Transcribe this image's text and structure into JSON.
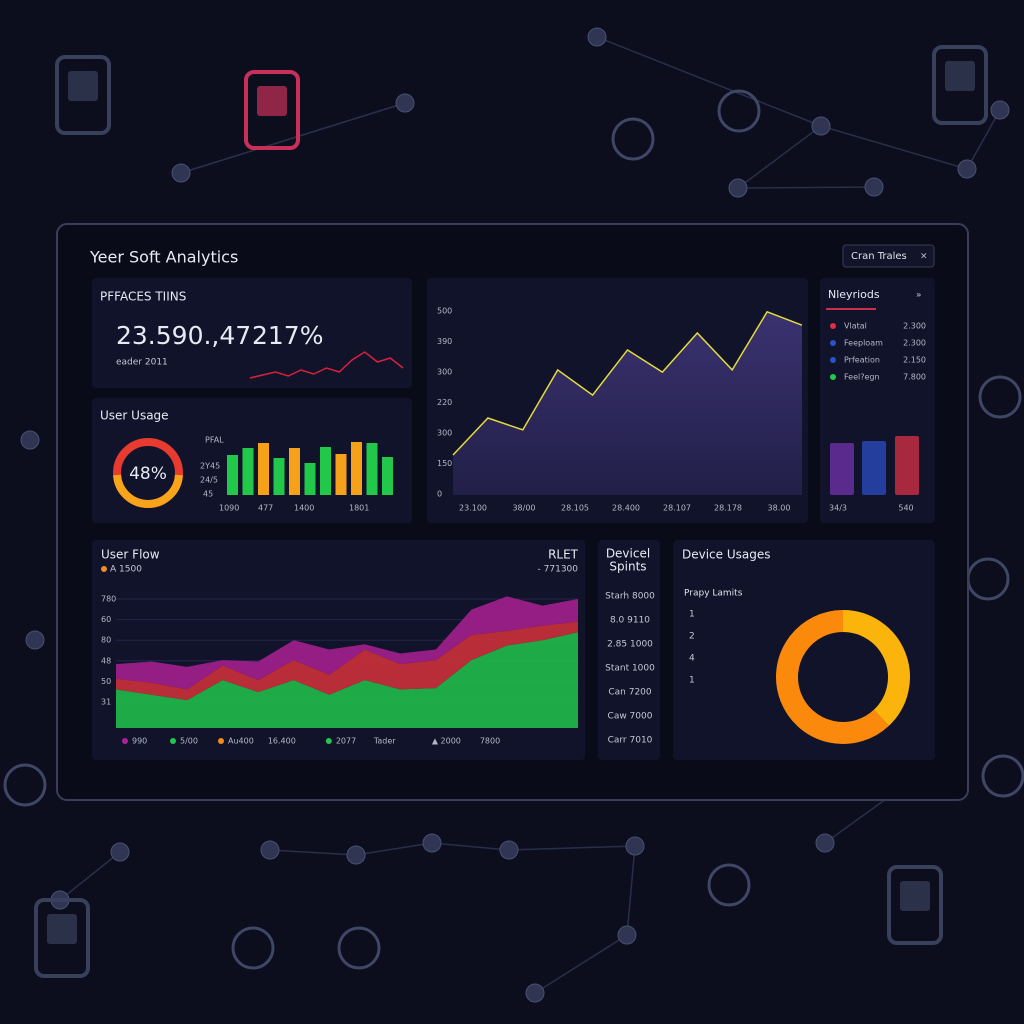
{
  "header": {
    "title": "Yeer Soft Analytics",
    "button": "Cran Trales",
    "close": "×"
  },
  "summary": {
    "title": "PFFACES TIINS",
    "value": "23.590.,47",
    "percent": "217%",
    "caption": "eader 2011",
    "sparkline": {
      "values": [
        7,
        10,
        13,
        9,
        15,
        11,
        17,
        13,
        25,
        33,
        23,
        27,
        17
      ],
      "ylim": [
        0,
        40
      ],
      "color": "#d8223a"
    }
  },
  "user_usage": {
    "title": "User Usage",
    "gauge": {
      "value": 48,
      "label": "48%",
      "color": "#f7a41a",
      "track_color": "#e63b2e"
    },
    "axis_labels": [
      "PFAL",
      "2Y45",
      "24/5",
      "45"
    ],
    "x_labels": [
      "1090",
      "477",
      "1400",
      "1801"
    ],
    "bars": {
      "values": [
        40,
        47,
        52,
        37,
        47,
        32,
        48,
        41,
        53,
        52,
        38
      ],
      "colors": [
        "#22c84a",
        "#22c84a",
        "#f5a11a",
        "#22c84a",
        "#f5a11a",
        "#22c84a",
        "#22c84a",
        "#f5a11a",
        "#f5a11a",
        "#22c84a",
        "#22c84a"
      ],
      "ylim": [
        0,
        60
      ]
    }
  },
  "trend": {
    "ylim": [
      0,
      500
    ],
    "y_labels": [
      "500",
      "390",
      "300",
      "220",
      "300",
      "150",
      "0"
    ],
    "x_labels": [
      "23.100",
      "38/00",
      "28.105",
      "28.400",
      "28.107",
      "28.178",
      "38.00"
    ],
    "values": [
      108,
      208,
      176,
      338,
      270,
      392,
      332,
      438,
      338,
      495,
      459
    ],
    "line_color": "#e3dc3c",
    "fill_color": "#2d2858"
  },
  "periods": {
    "title": "Nleyriods",
    "icon": "»",
    "legend": [
      {
        "color": "#e0303e",
        "name": "Vlatal",
        "value": "2.300"
      },
      {
        "color": "#2a52c8",
        "name": "Feeploam",
        "value": "2.300"
      },
      {
        "color": "#2a52c8",
        "name": "Prfeation",
        "value": "2.150"
      },
      {
        "color": "#22c84a",
        "name": "Feel?egn",
        "value": "7.800"
      }
    ],
    "bars": {
      "values": [
        52,
        54,
        59
      ],
      "colors": [
        "#5a2a8c",
        "#233e9c",
        "#a8283e"
      ],
      "ylim": [
        0,
        70
      ]
    },
    "x_labels": [
      "34/3",
      "540"
    ]
  },
  "user_flow": {
    "title": "User Flow",
    "legend_label": "A 1500",
    "legend_color": "#f28c1a",
    "right_title": "RLET",
    "right_value": "- 771300",
    "y_labels": [
      "780",
      "60",
      "80",
      "48",
      "50",
      "31"
    ],
    "ylim": [
      0,
      100
    ],
    "series": [
      {
        "color": "#1fb84a",
        "values": [
          29,
          25,
          21,
          36,
          27,
          36,
          25,
          36,
          29,
          30,
          51,
          62,
          66,
          72
        ]
      },
      {
        "color": "#c8303a",
        "values": [
          8,
          9,
          8,
          11,
          9,
          15,
          15,
          23,
          19,
          21,
          19,
          11,
          11,
          8
        ]
      },
      {
        "color": "#a0208c",
        "values": [
          11,
          16,
          17,
          4,
          14,
          15,
          19,
          4,
          8,
          8,
          19,
          26,
          15,
          17
        ]
      }
    ],
    "footer": [
      {
        "text": "990",
        "color": "#b0209c"
      },
      {
        "text": "5/00",
        "color": "#22c84a"
      },
      {
        "text": "Au400",
        "color": "#f28c1a"
      },
      {
        "text": "16.400"
      },
      {
        "text": "2077",
        "color": "#22c84a"
      },
      {
        "text": "Tader"
      },
      {
        "text": "▲ 2000"
      },
      {
        "text": "7800"
      }
    ]
  },
  "device_spints": {
    "title": [
      "Devicel",
      "Spints"
    ],
    "items": [
      "Starh 8000",
      "8.0 9110",
      "2.85 1000",
      "Stant 1000",
      "Can 7200",
      "Caw 7000",
      "Carr 7010"
    ]
  },
  "device_usages": {
    "title": "Device Usages",
    "subtitle": "Prapy Lamits",
    "list": [
      "1",
      "2",
      "4",
      "1"
    ],
    "donut": {
      "values": [
        38,
        62
      ],
      "colors": [
        "#fbb40c",
        "#fb8a0c"
      ]
    }
  }
}
